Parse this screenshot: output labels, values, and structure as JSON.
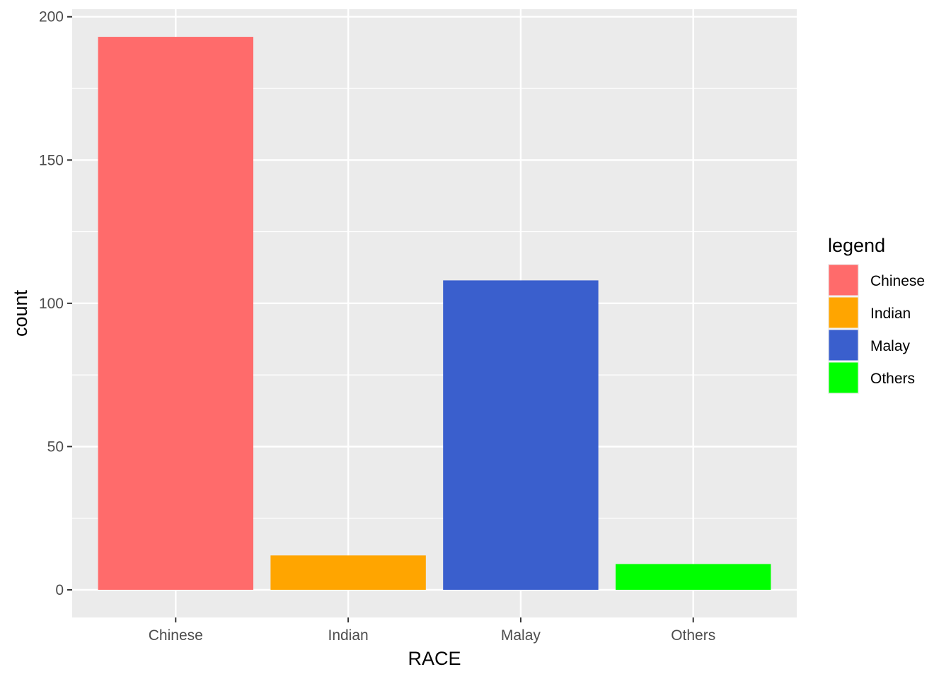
{
  "chart_data": {
    "type": "bar",
    "categories": [
      "Chinese",
      "Indian",
      "Malay",
      "Others"
    ],
    "values": [
      193,
      12,
      108,
      9
    ],
    "colors": [
      "#FF6B6B",
      "#FFA500",
      "#3A5FCD",
      "#00FF00"
    ],
    "xlabel": "RACE",
    "ylabel": "count",
    "ylim": [
      -9.65,
      202.65
    ],
    "yticks": [
      0,
      50,
      100,
      150,
      200
    ],
    "grid": true,
    "panel_background": "#EBEBEB",
    "legend": {
      "title": "legend",
      "position": "right",
      "entries": [
        "Chinese",
        "Indian",
        "Malay",
        "Others"
      ]
    }
  }
}
